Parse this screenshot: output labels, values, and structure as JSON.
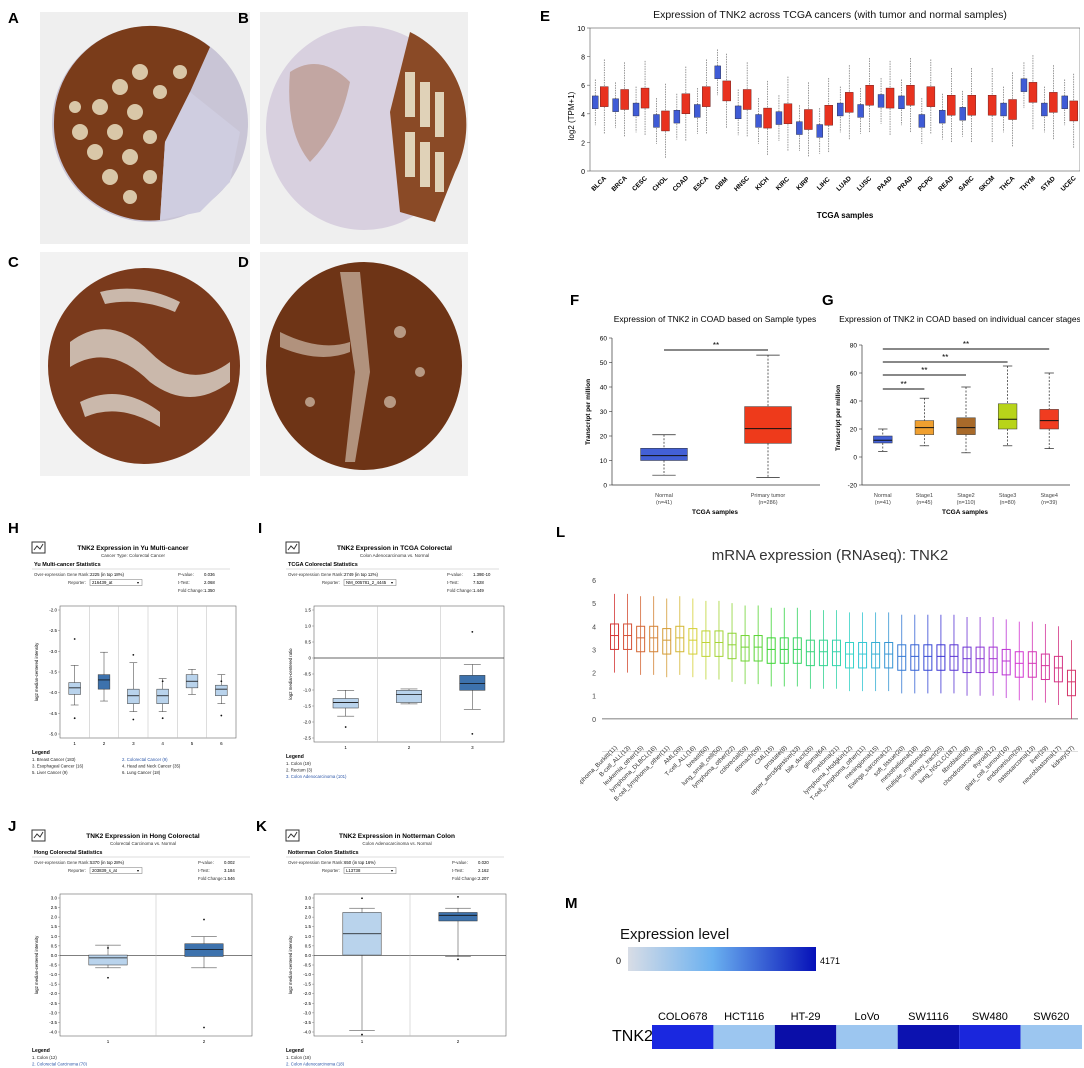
{
  "labels": {
    "A": "A",
    "B": "B",
    "C": "C",
    "D": "D",
    "E": "E",
    "F": "F",
    "G": "G",
    "H": "H",
    "I": "I",
    "J": "J",
    "K": "K",
    "L": "L",
    "M": "M"
  },
  "panel_e": {
    "title": "Expression of TNK2 across TCGA cancers (with tumor and normal samples)",
    "ylabel": "log2 (TPM+1)",
    "xlabel": "TCGA samples",
    "yticks": [
      0,
      2,
      4,
      6,
      8,
      10
    ],
    "cancers": [
      "BLCA",
      "BRCA",
      "CESC",
      "CHOL",
      "COAD",
      "ESCA",
      "GBM",
      "HNSC",
      "KICH",
      "KIRC",
      "KIRP",
      "LIHC",
      "LUAD",
      "LUSC",
      "PAAD",
      "PRAD",
      "PCPG",
      "READ",
      "SARC",
      "SKCM",
      "THCA",
      "THYM",
      "STAD",
      "UCEC"
    ],
    "colors": {
      "tumor": "#e8321f",
      "normal": "#3f5bd6"
    }
  },
  "panel_f": {
    "title": "Expression of TNK2 in COAD based on Sample types",
    "ylabel": "Transcript per million",
    "xlabel": "TCGA samples",
    "yticks": [
      0,
      10,
      20,
      30,
      40,
      50,
      60
    ],
    "sig": "**",
    "groups": [
      {
        "name": "Normal",
        "n": "(n=41)",
        "min": 4,
        "q1": 10,
        "median": 12,
        "q3": 15,
        "max": 20.5,
        "color": "#4360d6"
      },
      {
        "name": "Primary tumor",
        "n": "(n=286)",
        "min": 3,
        "q1": 17,
        "median": 23,
        "q3": 32,
        "max": 53,
        "color": "#ee3a1b"
      }
    ]
  },
  "panel_g": {
    "title": "Expression of TNK2 in COAD based on individual cancer stages",
    "ylabel": "Transcript per million",
    "xlabel": "TCGA samples",
    "yticks": [
      -20,
      0,
      20,
      40,
      60,
      80
    ],
    "sig": "**",
    "groups": [
      {
        "name": "Normal",
        "n": "(n=41)",
        "min": 4,
        "q1": 10,
        "median": 12,
        "q3": 15,
        "max": 20,
        "color": "#4360d6"
      },
      {
        "name": "Stage1",
        "n": "(n=45)",
        "min": 8,
        "q1": 16,
        "median": 21,
        "q3": 26,
        "max": 42,
        "color": "#f0a030"
      },
      {
        "name": "Stage2",
        "n": "(n=110)",
        "min": 3,
        "q1": 16,
        "median": 21,
        "q3": 28,
        "max": 50,
        "color": "#a86a2a"
      },
      {
        "name": "Stage3",
        "n": "(n=80)",
        "min": 8,
        "q1": 20,
        "median": 27,
        "q3": 38,
        "max": 65,
        "color": "#b8d41a"
      },
      {
        "name": "Stage4",
        "n": "(n=39)",
        "min": 6,
        "q1": 20,
        "median": 26,
        "q3": 34,
        "max": 60,
        "color": "#f03c20"
      }
    ]
  },
  "panel_h": {
    "header": "TNK2 Expression in Yu Multi-cancer",
    "subheader": "Cancer Type: Colorectal Cancer",
    "section": "Yu Multi-cancer Statistics",
    "rank_label": "Over-expression Gene Rank:",
    "rank_value": "2225 (in top 18%)",
    "reporter_label": "Reporter:",
    "reporter_value": "216439_at",
    "pvalue_label": "P-value:",
    "pvalue": "0.036",
    "ttest_label": "t-Test:",
    "ttest": "2.068",
    "fold_label": "Fold Change:",
    "fold": "1.350",
    "ylabel": "log2 median-centered intensity",
    "yticks": [
      "-2.0",
      "-2.5",
      "-3.0",
      "-3.5",
      "-4.0",
      "-4.5",
      "-5.0"
    ],
    "xticks": [
      "1",
      "2",
      "3",
      "4",
      "5",
      "6"
    ],
    "legend_title": "Legend",
    "legend": [
      "1. Breast Cancer (183)",
      "2. Colorectal Cancer (9)",
      "3. Esophageal Cancer (16)",
      "4. Head and Neck Cancer (35)",
      "5. Liver Cancer (9)",
      "6. Lung Cancer (18)"
    ]
  },
  "panel_i": {
    "header": "TNK2 Expression in TCGA Colorectal",
    "subheader": "Colon Adenocarcinoma vs. Normal",
    "section": "TCGA Colorectal Statistics",
    "rank_label": "Over-expression Gene Rank:",
    "rank_value": "2749 (in top 12%)",
    "reporter_label": "Reporter:",
    "reporter_value": "NM_005781_2_4445",
    "pvalue_label": "P-value:",
    "pvalue": "1.39E-10",
    "ttest_label": "t-Test:",
    "ttest": "7.528",
    "fold_label": "Fold Change:",
    "fold": "1.449",
    "ylabel": "log2 median-centered ratio",
    "yticks": [
      "1.5",
      "1.0",
      "0.5",
      "0",
      "-0.5",
      "-1.0",
      "-1.5",
      "-2.0",
      "-2.5"
    ],
    "xticks": [
      "1",
      "2",
      "3"
    ],
    "legend_title": "Legend",
    "legend": [
      "1. Colon (19)",
      "2. Rectum (3)",
      "3. Colon Adenocarcinoma (101)"
    ]
  },
  "panel_j": {
    "header": "TNK2 Expression in Hong Colorectal",
    "subheader": "Colorectal Carcinoma vs. Normal",
    "section": "Hong Colorectal Statistics",
    "rank_label": "Over-expression Gene Rank:",
    "rank_value": "5370 (in top 28%)",
    "reporter_label": "Reporter:",
    "reporter_value": "203839_s_at",
    "pvalue_label": "P-value:",
    "pvalue": "0.002",
    "ttest_label": "t-Test:",
    "ttest": "3.184",
    "fold_label": "Fold Change:",
    "fold": "1.546",
    "ylabel": "log2 median-centered intensity",
    "yticks": [
      "3.0",
      "2.5",
      "2.0",
      "1.5",
      "1.0",
      "0.5",
      "0.0",
      "-0.5",
      "-1.0",
      "-1.5",
      "-2.0",
      "-2.5",
      "-3.0",
      "-3.5",
      "-4.0"
    ],
    "xticks": [
      "1",
      "2"
    ],
    "legend_title": "Legend",
    "legend": [
      "1. Colon (12)",
      "2. Colorectal Carcinoma (70)"
    ]
  },
  "panel_k": {
    "header": "TNK2 Expression in Notterman Colon",
    "subheader": "Colon Adenocarcinoma vs. Normal",
    "section": "Notterman Colon Statistics",
    "rank_label": "Over-expression Gene Rank:",
    "rank_value": "650 (in top 16%)",
    "reporter_label": "Reporter:",
    "reporter_value": "L13738",
    "pvalue_label": "P-value:",
    "pvalue": "0.020",
    "ttest_label": "t-Test:",
    "ttest": "2.162",
    "fold_label": "Fold Change:",
    "fold": "2.207",
    "ylabel": "log2 median-centered intensity",
    "yticks": [
      "3.0",
      "2.5",
      "2.0",
      "1.5",
      "1.0",
      "0.5",
      "0.0",
      "-0.5",
      "-1.0",
      "-1.5",
      "-2.0",
      "-2.5",
      "-3.0",
      "-3.5",
      "-4.0"
    ],
    "xticks": [
      "1",
      "2"
    ],
    "legend_title": "Legend",
    "legend": [
      "1. Colon (18)",
      "2. Colon Adenocarcinoma (18)"
    ]
  },
  "panel_l": {
    "title": "mRNA expression (RNAseq): TNK2",
    "yticks": [
      0,
      1,
      2,
      3,
      4,
      5,
      6
    ],
    "categories": [
      "lymphoma_Burkitt(11)",
      "B-cell_ALL(13)",
      "leukemia_other(15)",
      "lymphoma_DLBCL(16)",
      "B-cell_lymphoma_other(11)",
      "AML(39)",
      "T-cell_ALL(16)",
      "breast(60)",
      "lung_small_cell(50)",
      "lymphoma_other(22)",
      "colorectal(59)",
      "stomach(39)",
      "CML(15)",
      "prostate(8)",
      "upper_aerodigestive(33)",
      "bile_duct(35)",
      "glioma(64)",
      "myeloma(21)",
      "lymphoma_Hodgkin(12)",
      "T-cell_lymphoma_other(11)",
      "meningioma(15)",
      "Ewings_sarcoma(12)",
      "soft_tissue(20)",
      "mesothelioma(18)",
      "multiple_myeloma(30)",
      "urinary_tract(25)",
      "lung_NSCLC(187)",
      "fibroblast(38)",
      "chondrosarcoma(8)",
      "thyroid(12)",
      "giant_cell_tumour(10)",
      "endometrium(29)",
      "osteosarcoma(13)",
      "liver(29)",
      "neuroblastoma(17)",
      "kidney(37)"
    ]
  },
  "panel_m": {
    "legend_title": "Expression level",
    "min": "0",
    "max": "4171",
    "gene": "TNK2",
    "cell_lines": [
      "COLO678",
      "HCT116",
      "HT-29",
      "LoVo",
      "SW1116",
      "SW480",
      "SW620"
    ],
    "colors": [
      "#1a28e0",
      "#9cc6f0",
      "#0a0ea8",
      "#9cc6f0",
      "#0c12b0",
      "#1a26dc",
      "#9cc6f0"
    ]
  }
}
